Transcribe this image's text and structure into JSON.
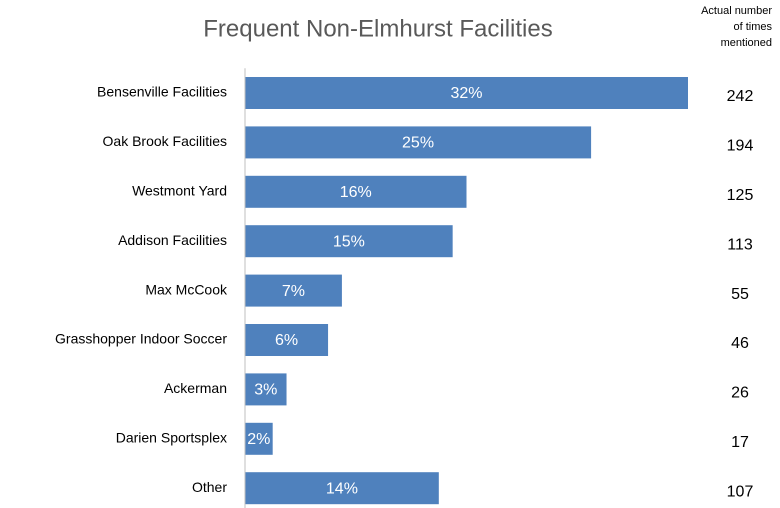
{
  "chart_data": {
    "type": "bar",
    "orientation": "horizontal",
    "title": "Frequent Non-Elmhurst Facilities",
    "categories": [
      "Bensenville Facilities",
      "Oak Brook Facilities",
      "Westmont Yard",
      "Addison Facilities",
      "Max McCook",
      "Grasshopper Indoor Soccer",
      "Ackerman",
      "Darien Sportsplex",
      "Other"
    ],
    "values": [
      32,
      25,
      16,
      15,
      7,
      6,
      3,
      2,
      14
    ],
    "value_labels": [
      "32%",
      "25%",
      "16%",
      "15%",
      "7%",
      "6%",
      "3%",
      "2%",
      "14%"
    ],
    "color": "#4f81bd",
    "counts_title": [
      "Actual number",
      "of times",
      "mentioned"
    ],
    "counts": [
      242,
      194,
      125,
      113,
      55,
      46,
      26,
      17,
      107
    ]
  }
}
